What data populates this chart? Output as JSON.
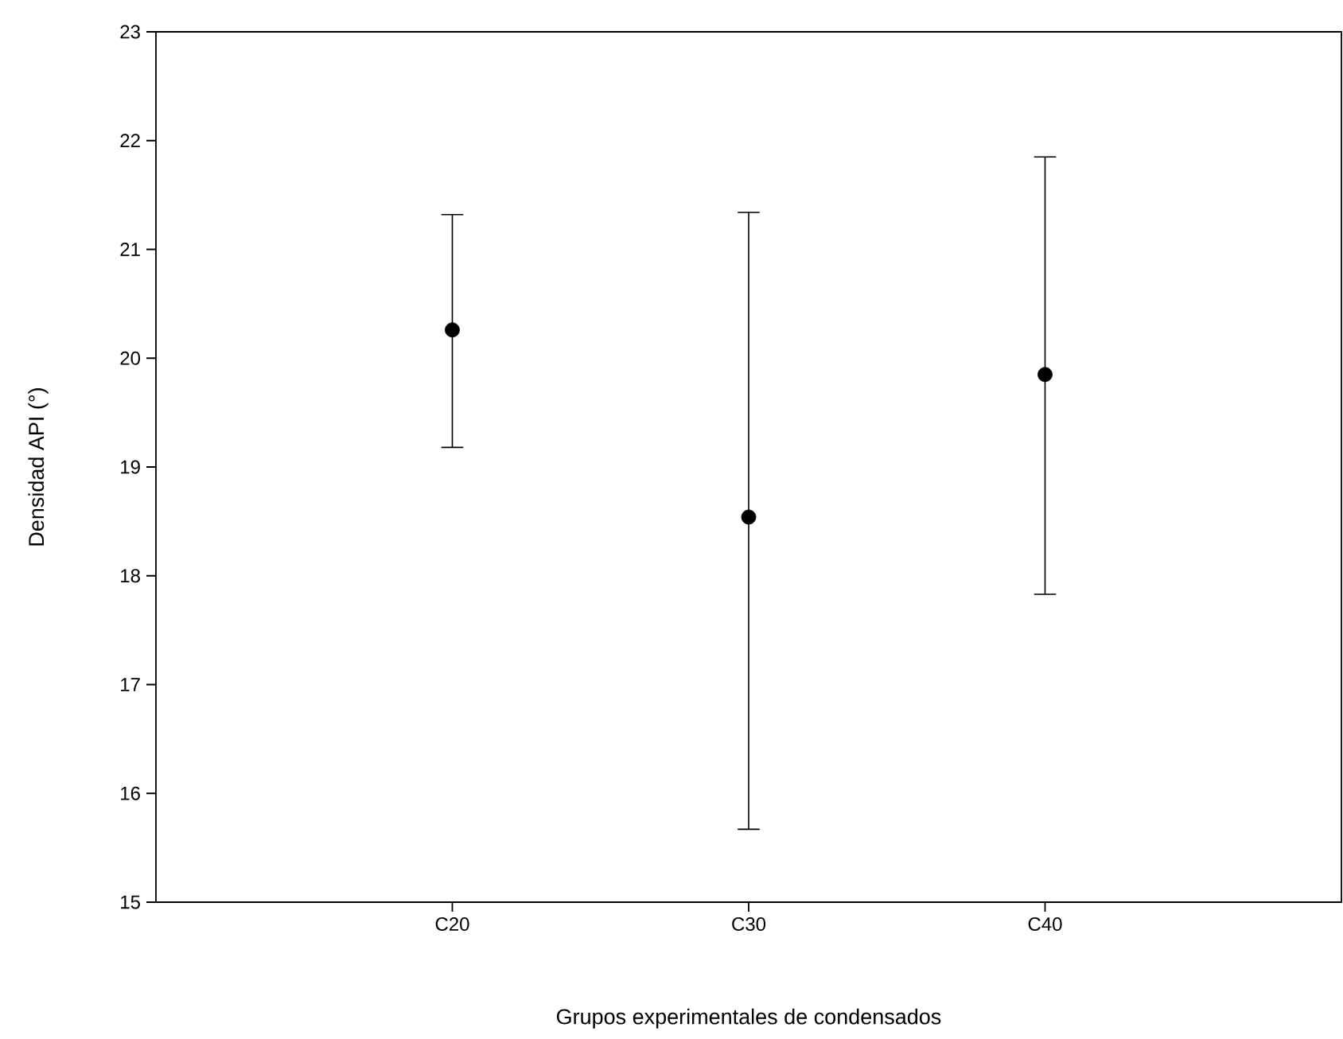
{
  "chart_data": {
    "type": "scatter",
    "xlabel": "Grupos experimentales de condensados",
    "ylabel": "Densidad API (°)",
    "categories": [
      "C20",
      "C30",
      "C40"
    ],
    "values": [
      20.26,
      18.54,
      19.85
    ],
    "errors": [
      [
        19.18,
        21.32
      ],
      [
        15.67,
        21.34
      ],
      [
        17.83,
        21.85
      ]
    ],
    "color": "#000000",
    "marker": "circle",
    "ylim": [
      15,
      23
    ],
    "yticks": [
      15,
      16,
      17,
      18,
      19,
      20,
      21,
      22,
      23
    ],
    "grid": false,
    "legend": false
  }
}
